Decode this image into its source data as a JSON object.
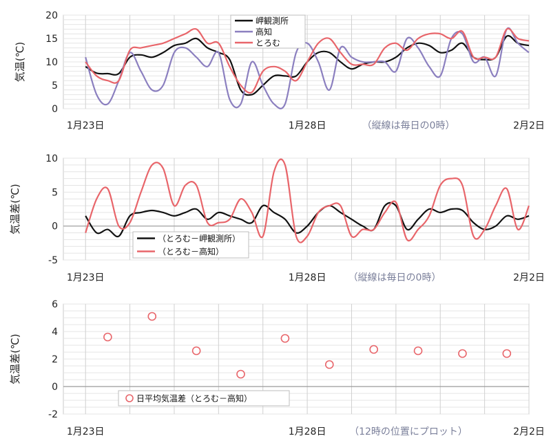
{
  "chart_data": [
    {
      "type": "line",
      "ylabel": "気温(℃)",
      "ylim": [
        0,
        20
      ],
      "yticks": [
        0,
        5,
        10,
        15,
        20
      ],
      "xlim": [
        -0.5,
        10
      ],
      "x_tick_labels": [
        {
          "x": 0,
          "label": "1月23日"
        },
        {
          "x": 5,
          "label": "1月28日"
        },
        {
          "x": 10,
          "label": "2月2日"
        }
      ],
      "note": "（縦線は毎日の0時）",
      "grid": true,
      "legend_position": "top-center",
      "series": [
        {
          "name": "岬観測所",
          "color": "#111111",
          "x": [
            0,
            0.25,
            0.5,
            0.75,
            1,
            1.25,
            1.5,
            1.75,
            2,
            2.25,
            2.5,
            2.75,
            3,
            3.25,
            3.5,
            3.75,
            4,
            4.25,
            4.5,
            4.75,
            5,
            5.25,
            5.5,
            5.75,
            6,
            6.25,
            6.5,
            6.75,
            7,
            7.25,
            7.5,
            7.75,
            8,
            8.25,
            8.5,
            8.75,
            9,
            9.25,
            9.5,
            9.75,
            10
          ],
          "y": [
            9,
            7.6,
            7.5,
            7.5,
            11,
            11.5,
            11,
            12,
            13.5,
            14,
            15,
            13,
            12,
            10.5,
            4,
            3,
            5,
            7,
            7,
            7,
            10,
            12,
            12,
            10,
            8.5,
            9.5,
            10,
            10,
            11,
            13,
            14,
            13.5,
            12,
            12.5,
            14,
            11,
            10.5,
            11,
            15.5,
            14,
            13.5
          ]
        },
        {
          "name": "高知",
          "color": "#8b7fbf",
          "x": [
            0,
            0.25,
            0.5,
            0.75,
            1,
            1.25,
            1.5,
            1.75,
            2,
            2.25,
            2.5,
            2.75,
            3,
            3.25,
            3.5,
            3.75,
            4,
            4.25,
            4.5,
            4.75,
            5,
            5.25,
            5.5,
            5.75,
            6,
            6.25,
            6.5,
            6.75,
            7,
            7.25,
            7.5,
            7.75,
            8,
            8.25,
            8.5,
            8.75,
            9,
            9.25,
            9.5,
            9.75,
            10
          ],
          "y": [
            11,
            3,
            1,
            6,
            12,
            8,
            4,
            5,
            12,
            13,
            11,
            9,
            12,
            2,
            1,
            10,
            5,
            1,
            1,
            12,
            14,
            10,
            4,
            13,
            11,
            10,
            10,
            10,
            8,
            15,
            13,
            9,
            7,
            15,
            16,
            10,
            11,
            7,
            17,
            14,
            12
          ]
        },
        {
          "name": "とろむ",
          "color": "#e8656a",
          "x": [
            0,
            0.25,
            0.5,
            0.75,
            1,
            1.25,
            1.5,
            1.75,
            2,
            2.25,
            2.5,
            2.75,
            3,
            3.25,
            3.5,
            3.75,
            4,
            4.25,
            4.5,
            4.75,
            5,
            5.25,
            5.5,
            5.75,
            6,
            6.25,
            6.5,
            6.75,
            7,
            7.25,
            7.5,
            7.75,
            8,
            8.25,
            8.5,
            8.75,
            9,
            9.25,
            9.5,
            9.75,
            10
          ],
          "y": [
            10,
            7,
            6,
            6,
            12.5,
            13,
            13.5,
            14,
            15,
            16,
            17,
            14,
            14,
            9,
            5,
            3.5,
            8,
            9,
            8,
            6,
            10,
            14,
            15,
            12,
            9.5,
            9.5,
            9.5,
            13,
            14,
            12.5,
            15,
            16,
            16,
            15,
            16.5,
            11,
            11,
            11,
            17,
            15,
            14.5
          ]
        }
      ]
    },
    {
      "type": "line",
      "ylabel": "気温差(℃)",
      "ylim": [
        -5,
        10
      ],
      "yticks": [
        -5,
        0,
        5,
        10
      ],
      "xlim": [
        -0.5,
        10
      ],
      "x_tick_labels": [
        {
          "x": 0,
          "label": "1月23日"
        },
        {
          "x": 5,
          "label": "1月28日"
        },
        {
          "x": 10,
          "label": "2月2日"
        }
      ],
      "note": "（縦線は毎日の0時）",
      "grid": true,
      "legend_position": "bottom-left",
      "series": [
        {
          "name": "（とろむ－岬観測所）",
          "color": "#111111",
          "x": [
            0,
            0.25,
            0.5,
            0.75,
            1,
            1.25,
            1.5,
            1.75,
            2,
            2.25,
            2.5,
            2.75,
            3,
            3.25,
            3.5,
            3.75,
            4,
            4.25,
            4.5,
            4.75,
            5,
            5.25,
            5.5,
            5.75,
            6,
            6.25,
            6.5,
            6.75,
            7,
            7.25,
            7.5,
            7.75,
            8,
            8.25,
            8.5,
            8.75,
            9,
            9.25,
            9.5,
            9.75,
            10
          ],
          "y": [
            1.5,
            -1,
            -0.5,
            -1.5,
            1.5,
            2,
            2.3,
            2,
            1.5,
            2,
            2.5,
            1,
            2,
            1.5,
            1,
            0.5,
            3,
            2,
            1,
            -1,
            0,
            2,
            3,
            2,
            1,
            0,
            -0.5,
            3,
            3,
            -0.5,
            1,
            2.5,
            2,
            2.5,
            2.3,
            0.5,
            -0.5,
            0,
            1.5,
            1,
            1.5
          ]
        },
        {
          "name": "（とろむ－高知）",
          "color": "#e8656a",
          "x": [
            0,
            0.25,
            0.5,
            0.75,
            1,
            1.25,
            1.5,
            1.75,
            2,
            2.25,
            2.5,
            2.75,
            3,
            3.25,
            3.5,
            3.75,
            4,
            4.25,
            4.5,
            4.75,
            5,
            5.25,
            5.5,
            5.75,
            6,
            6.25,
            6.5,
            6.75,
            7,
            7.25,
            7.5,
            7.75,
            8,
            8.25,
            8.5,
            8.75,
            9,
            9.25,
            9.5,
            9.75,
            10
          ],
          "y": [
            -1,
            4,
            5.5,
            0,
            0.5,
            5,
            9,
            8.5,
            3,
            6,
            6,
            0.5,
            0.5,
            1,
            4,
            2,
            -1.5,
            8,
            9,
            -1.5,
            -1.5,
            2,
            3,
            3,
            -1.5,
            -0.5,
            -0.5,
            2,
            3.5,
            -2,
            -0.5,
            1.5,
            6,
            7,
            6,
            -1.5,
            -0.5,
            3,
            5.5,
            -0.5,
            3
          ]
        }
      ]
    },
    {
      "type": "scatter",
      "ylabel": "気温差(℃)",
      "ylim": [
        -2,
        6
      ],
      "yticks": [
        -2,
        0,
        2,
        4,
        6
      ],
      "xlim": [
        -0.5,
        10
      ],
      "x_tick_labels": [
        {
          "x": 0,
          "label": "1月23日"
        },
        {
          "x": 5,
          "label": "1月28日"
        },
        {
          "x": 10,
          "label": "2月2日"
        }
      ],
      "note": "（12時の位置にプロット）",
      "grid": true,
      "legend_position": "bottom-left",
      "series": [
        {
          "name": "日平均気温差（とろむ－高知）",
          "color": "#e8656a",
          "x": [
            0.5,
            1.5,
            2.5,
            3.5,
            4.5,
            5.5,
            6.5,
            7.5,
            8.5,
            9.5
          ],
          "y": [
            3.6,
            5.1,
            2.6,
            0.9,
            3.5,
            1.6,
            2.7,
            2.6,
            2.4,
            2.4
          ]
        }
      ]
    }
  ]
}
